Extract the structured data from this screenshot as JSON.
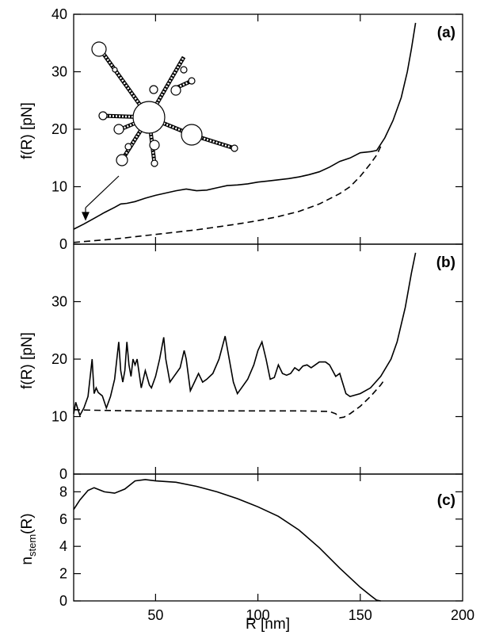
{
  "chart_data": [
    {
      "panel": "(a)",
      "type": "line",
      "xlim": [
        10,
        200
      ],
      "ylim": [
        0,
        40
      ],
      "yticks": [
        0,
        10,
        20,
        30,
        40
      ],
      "ylabel": "f(R) [pN]",
      "series": [
        {
          "style": "solid",
          "points": [
            [
              10,
              2.6
            ],
            [
              15,
              3.5
            ],
            [
              20,
              4.5
            ],
            [
              25,
              5.5
            ],
            [
              30,
              6.4
            ],
            [
              33,
              7.0
            ],
            [
              36,
              7.1
            ],
            [
              40,
              7.4
            ],
            [
              45,
              8.0
            ],
            [
              50,
              8.5
            ],
            [
              55,
              8.9
            ],
            [
              60,
              9.3
            ],
            [
              65,
              9.6
            ],
            [
              70,
              9.3
            ],
            [
              75,
              9.4
            ],
            [
              80,
              9.8
            ],
            [
              85,
              10.2
            ],
            [
              90,
              10.3
            ],
            [
              95,
              10.5
            ],
            [
              100,
              10.8
            ],
            [
              105,
              11.0
            ],
            [
              110,
              11.2
            ],
            [
              115,
              11.4
            ],
            [
              120,
              11.7
            ],
            [
              125,
              12.1
            ],
            [
              130,
              12.6
            ],
            [
              135,
              13.4
            ],
            [
              140,
              14.4
            ],
            [
              145,
              15.0
            ],
            [
              150,
              15.9
            ],
            [
              155,
              16.1
            ],
            [
              158,
              16.3
            ],
            [
              162,
              18.5
            ],
            [
              166,
              21.5
            ],
            [
              170,
              25.5
            ],
            [
              173,
              30.0
            ],
            [
              175,
              34.0
            ],
            [
              177,
              38.5
            ]
          ]
        },
        {
          "style": "dashed",
          "points": [
            [
              10,
              0.3
            ],
            [
              20,
              0.6
            ],
            [
              30,
              0.9
            ],
            [
              40,
              1.3
            ],
            [
              50,
              1.7
            ],
            [
              60,
              2.1
            ],
            [
              70,
              2.5
            ],
            [
              80,
              3.0
            ],
            [
              90,
              3.5
            ],
            [
              100,
              4.1
            ],
            [
              110,
              4.8
            ],
            [
              120,
              5.7
            ],
            [
              130,
              7.0
            ],
            [
              140,
              8.8
            ],
            [
              145,
              10.0
            ],
            [
              150,
              11.8
            ],
            [
              155,
              14.0
            ],
            [
              158,
              15.5
            ],
            [
              160,
              17.0
            ]
          ]
        }
      ]
    },
    {
      "panel": "(b)",
      "type": "line",
      "xlim": [
        10,
        200
      ],
      "ylim": [
        0,
        40
      ],
      "yticks": [
        0,
        10,
        20,
        30
      ],
      "ylabel": "f(R) [pN]",
      "series": [
        {
          "style": "solid",
          "points": [
            [
              10,
              10.5
            ],
            [
              11,
              12.5
            ],
            [
              13,
              10.2
            ],
            [
              15,
              11.5
            ],
            [
              17,
              13.5
            ],
            [
              19,
              20.0
            ],
            [
              20,
              14.0
            ],
            [
              21,
              15.0
            ],
            [
              22,
              14.2
            ],
            [
              24,
              13.6
            ],
            [
              26,
              11.5
            ],
            [
              28,
              13.5
            ],
            [
              30,
              16.5
            ],
            [
              32,
              23.0
            ],
            [
              33,
              18.0
            ],
            [
              34,
              16.0
            ],
            [
              35,
              18.0
            ],
            [
              36,
              23.0
            ],
            [
              37,
              19.0
            ],
            [
              38,
              17.0
            ],
            [
              39,
              20.0
            ],
            [
              40,
              19.0
            ],
            [
              41,
              20.0
            ],
            [
              43,
              15.0
            ],
            [
              45,
              18.0
            ],
            [
              47,
              15.5
            ],
            [
              48,
              15.0
            ],
            [
              50,
              17.0
            ],
            [
              52,
              20.0
            ],
            [
              54,
              23.8
            ],
            [
              55,
              20.0
            ],
            [
              57,
              16.0
            ],
            [
              59,
              17.0
            ],
            [
              62,
              18.5
            ],
            [
              64,
              21.5
            ],
            [
              65,
              20.0
            ],
            [
              67,
              14.5
            ],
            [
              69,
              16.0
            ],
            [
              71,
              17.5
            ],
            [
              73,
              16.0
            ],
            [
              75,
              16.5
            ],
            [
              78,
              17.5
            ],
            [
              81,
              20.0
            ],
            [
              84,
              24.0
            ],
            [
              86,
              20.0
            ],
            [
              88,
              16.0
            ],
            [
              90,
              14.0
            ],
            [
              92,
              15.0
            ],
            [
              95,
              16.5
            ],
            [
              98,
              19.0
            ],
            [
              100,
              21.5
            ],
            [
              102,
              23.0
            ],
            [
              104,
              20.0
            ],
            [
              106,
              16.5
            ],
            [
              108,
              16.8
            ],
            [
              110,
              19.0
            ],
            [
              112,
              17.5
            ],
            [
              114,
              17.2
            ],
            [
              116,
              17.5
            ],
            [
              118,
              18.5
            ],
            [
              120,
              18.0
            ],
            [
              122,
              18.8
            ],
            [
              124,
              19.0
            ],
            [
              126,
              18.5
            ],
            [
              128,
              19.0
            ],
            [
              130,
              19.5
            ],
            [
              133,
              19.5
            ],
            [
              135,
              19.0
            ],
            [
              138,
              17.0
            ],
            [
              140,
              17.5
            ],
            [
              143,
              14.0
            ],
            [
              145,
              13.5
            ],
            [
              150,
              14.0
            ],
            [
              155,
              15.0
            ],
            [
              160,
              17.0
            ],
            [
              165,
              20.0
            ],
            [
              168,
              23.0
            ],
            [
              172,
              29.0
            ],
            [
              175,
              35.0
            ],
            [
              177,
              38.5
            ]
          ]
        },
        {
          "style": "dashed",
          "points": [
            [
              10,
              11.2
            ],
            [
              20,
              11.1
            ],
            [
              40,
              11.0
            ],
            [
              60,
              11.0
            ],
            [
              80,
              11.0
            ],
            [
              100,
              11.0
            ],
            [
              120,
              11.0
            ],
            [
              135,
              10.9
            ],
            [
              138,
              10.5
            ],
            [
              140,
              9.8
            ],
            [
              142,
              9.9
            ],
            [
              145,
              10.5
            ],
            [
              150,
              11.8
            ],
            [
              155,
              13.5
            ],
            [
              160,
              15.5
            ],
            [
              162,
              16.5
            ]
          ]
        }
      ]
    },
    {
      "panel": "(c)",
      "type": "line",
      "xlim": [
        10,
        200
      ],
      "ylim": [
        0,
        9.3
      ],
      "yticks": [
        0,
        2,
        4,
        6,
        8
      ],
      "xticks": [
        50,
        100,
        150,
        200
      ],
      "xlabel": "R [nm]",
      "ylabel_main": "n",
      "ylabel_sub": "stem",
      "ylabel_tail": "(R)",
      "series": [
        {
          "style": "solid",
          "points": [
            [
              10,
              6.7
            ],
            [
              13,
              7.4
            ],
            [
              17,
              8.1
            ],
            [
              20,
              8.3
            ],
            [
              25,
              8.0
            ],
            [
              30,
              7.9
            ],
            [
              35,
              8.2
            ],
            [
              40,
              8.8
            ],
            [
              45,
              8.9
            ],
            [
              50,
              8.8
            ],
            [
              60,
              8.7
            ],
            [
              70,
              8.4
            ],
            [
              80,
              8.0
            ],
            [
              90,
              7.5
            ],
            [
              100,
              6.9
            ],
            [
              110,
              6.2
            ],
            [
              120,
              5.2
            ],
            [
              130,
              3.9
            ],
            [
              140,
              2.4
            ],
            [
              150,
              1.0
            ],
            [
              155,
              0.4
            ],
            [
              158,
              0.05
            ],
            [
              160,
              0.0
            ]
          ]
        }
      ]
    }
  ],
  "tags": {
    "a": "(a)",
    "b": "(b)",
    "c": "(c)"
  },
  "labels": {
    "y_ab": "f(R) [pN]",
    "x": "R [nm]",
    "nstem_n": "n",
    "nstem_sub": "stem",
    "nstem_tail": "(R)"
  }
}
